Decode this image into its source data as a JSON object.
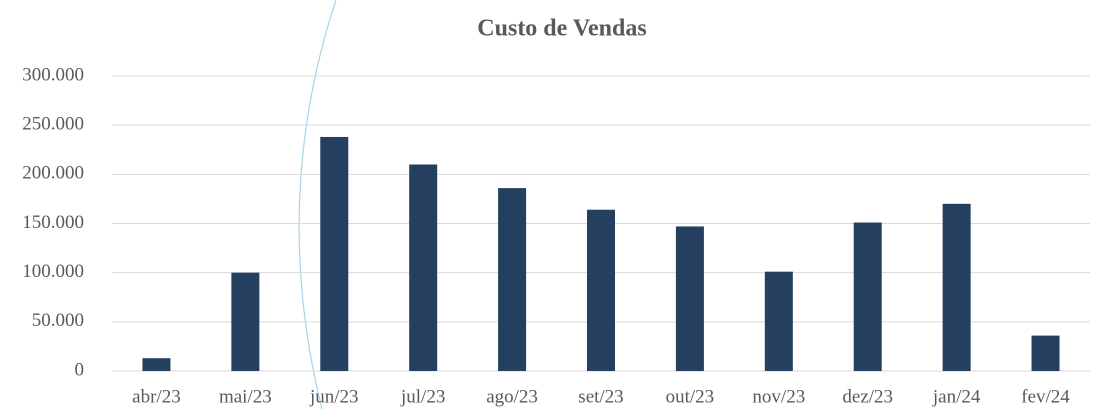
{
  "chart_data": {
    "type": "bar",
    "title": "Custo de Vendas",
    "categories": [
      "abr/23",
      "mai/23",
      "jun/23",
      "jul/23",
      "ago/23",
      "set/23",
      "out/23",
      "nov/23",
      "dez/23",
      "jan/24",
      "fev/24"
    ],
    "values": [
      13000,
      100000,
      238000,
      210000,
      186000,
      164000,
      147000,
      101000,
      151000,
      170000,
      36000
    ],
    "color": "#243f60",
    "ylim": [
      0,
      300000
    ],
    "yticks": [
      0,
      {
        "value": 50000,
        "label": "50.000"
      },
      {
        "value": 100000,
        "label": "100.000"
      },
      {
        "value": 150000,
        "label": "150.000"
      },
      {
        "value": 200000,
        "label": "200.000"
      },
      {
        "value": 250000,
        "label": "250.000"
      },
      {
        "value": 300000,
        "label": "300.000"
      }
    ],
    "grid": true
  }
}
